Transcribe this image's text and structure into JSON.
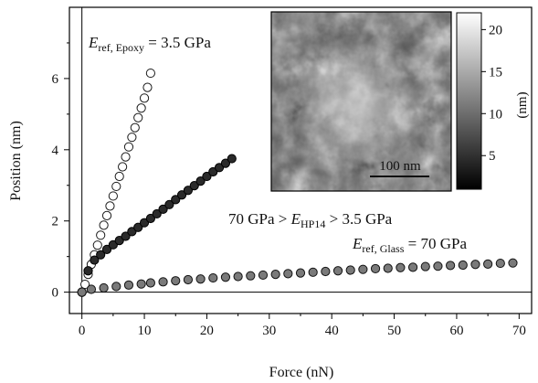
{
  "chart_data": {
    "type": "scatter",
    "title": "",
    "xlabel": "Force (nN)",
    "ylabel": "Position (nm)",
    "xlim": [
      -2,
      72
    ],
    "ylim": [
      -0.6,
      8.0
    ],
    "xticks": [
      0,
      10,
      20,
      30,
      40,
      50,
      60,
      70
    ],
    "yticks": [
      0,
      2,
      4,
      6
    ],
    "grid": false,
    "zero_lines": true,
    "series": [
      {
        "style": "open-circle",
        "fill": "#ffffff",
        "stroke": "#1a1a1a",
        "points": [
          [
            0,
            0
          ],
          [
            0.5,
            0.22
          ],
          [
            1,
            0.5
          ],
          [
            1.5,
            0.78
          ],
          [
            2,
            1.05
          ],
          [
            2.5,
            1.32
          ],
          [
            3,
            1.6
          ],
          [
            3.5,
            1.88
          ],
          [
            4,
            2.15
          ],
          [
            4.5,
            2.42
          ],
          [
            5,
            2.7
          ],
          [
            5.5,
            2.97
          ],
          [
            6,
            3.25
          ],
          [
            6.5,
            3.52
          ],
          [
            7,
            3.8
          ],
          [
            7.5,
            4.08
          ],
          [
            8,
            4.35
          ],
          [
            8.5,
            4.62
          ],
          [
            9,
            4.9
          ],
          [
            9.5,
            5.17
          ],
          [
            10,
            5.45
          ],
          [
            10.5,
            5.75
          ],
          [
            11,
            6.15
          ]
        ]
      },
      {
        "style": "dark-circle",
        "fill": "#2a2a2a",
        "stroke": "#000000",
        "points": [
          [
            0,
            0
          ],
          [
            1,
            0.6
          ],
          [
            2,
            0.9
          ],
          [
            3,
            1.05
          ],
          [
            4,
            1.2
          ],
          [
            5,
            1.33
          ],
          [
            6,
            1.45
          ],
          [
            7,
            1.57
          ],
          [
            8,
            1.7
          ],
          [
            9,
            1.82
          ],
          [
            10,
            1.95
          ],
          [
            11,
            2.07
          ],
          [
            12,
            2.2
          ],
          [
            13,
            2.33
          ],
          [
            14,
            2.46
          ],
          [
            15,
            2.6
          ],
          [
            16,
            2.73
          ],
          [
            17,
            2.86
          ],
          [
            18,
            2.99
          ],
          [
            19,
            3.12
          ],
          [
            20,
            3.25
          ],
          [
            21,
            3.38
          ],
          [
            22,
            3.5
          ],
          [
            23,
            3.62
          ],
          [
            24,
            3.75
          ]
        ]
      },
      {
        "style": "gray-circle",
        "fill": "#7a7a7a",
        "stroke": "#111111",
        "points": [
          [
            0,
            0
          ],
          [
            1.5,
            0.08
          ],
          [
            3.5,
            0.12
          ],
          [
            5.5,
            0.16
          ],
          [
            7.5,
            0.2
          ],
          [
            9.5,
            0.23
          ],
          [
            11,
            0.26
          ],
          [
            13,
            0.29
          ],
          [
            15,
            0.32
          ],
          [
            17,
            0.35
          ],
          [
            19,
            0.37
          ],
          [
            21,
            0.4
          ],
          [
            23,
            0.42
          ],
          [
            25,
            0.44
          ],
          [
            27,
            0.46
          ],
          [
            29,
            0.48
          ],
          [
            31,
            0.5
          ],
          [
            33,
            0.52
          ],
          [
            35,
            0.54
          ],
          [
            37,
            0.56
          ],
          [
            39,
            0.58
          ],
          [
            41,
            0.6
          ],
          [
            43,
            0.62
          ],
          [
            45,
            0.64
          ],
          [
            47,
            0.66
          ],
          [
            49,
            0.67
          ],
          [
            51,
            0.69
          ],
          [
            53,
            0.7
          ],
          [
            55,
            0.72
          ],
          [
            57,
            0.73
          ],
          [
            59,
            0.75
          ],
          [
            61,
            0.76
          ],
          [
            63,
            0.78
          ],
          [
            65,
            0.79
          ],
          [
            67,
            0.81
          ],
          [
            69,
            0.82
          ]
        ]
      }
    ],
    "annotations": {
      "epoxy": {
        "main": "E",
        "sub": "ref, Epoxy",
        "rest": " = 3.5 GPa"
      },
      "hp14": {
        "pre": "70 GPa > ",
        "main": "E",
        "sub": "HP14",
        "rest": " > 3.5 GPa"
      },
      "glass": {
        "main": "E",
        "sub": "ref, Glass",
        "rest": " = 70 GPa"
      }
    },
    "inset": {
      "type": "heatmap-image",
      "colormap": "grayscale",
      "scalebar_label": "100 nm",
      "colorbar": {
        "label": "(nm)",
        "range": [
          1,
          22
        ],
        "ticks": [
          5,
          10,
          15,
          20
        ]
      }
    }
  }
}
